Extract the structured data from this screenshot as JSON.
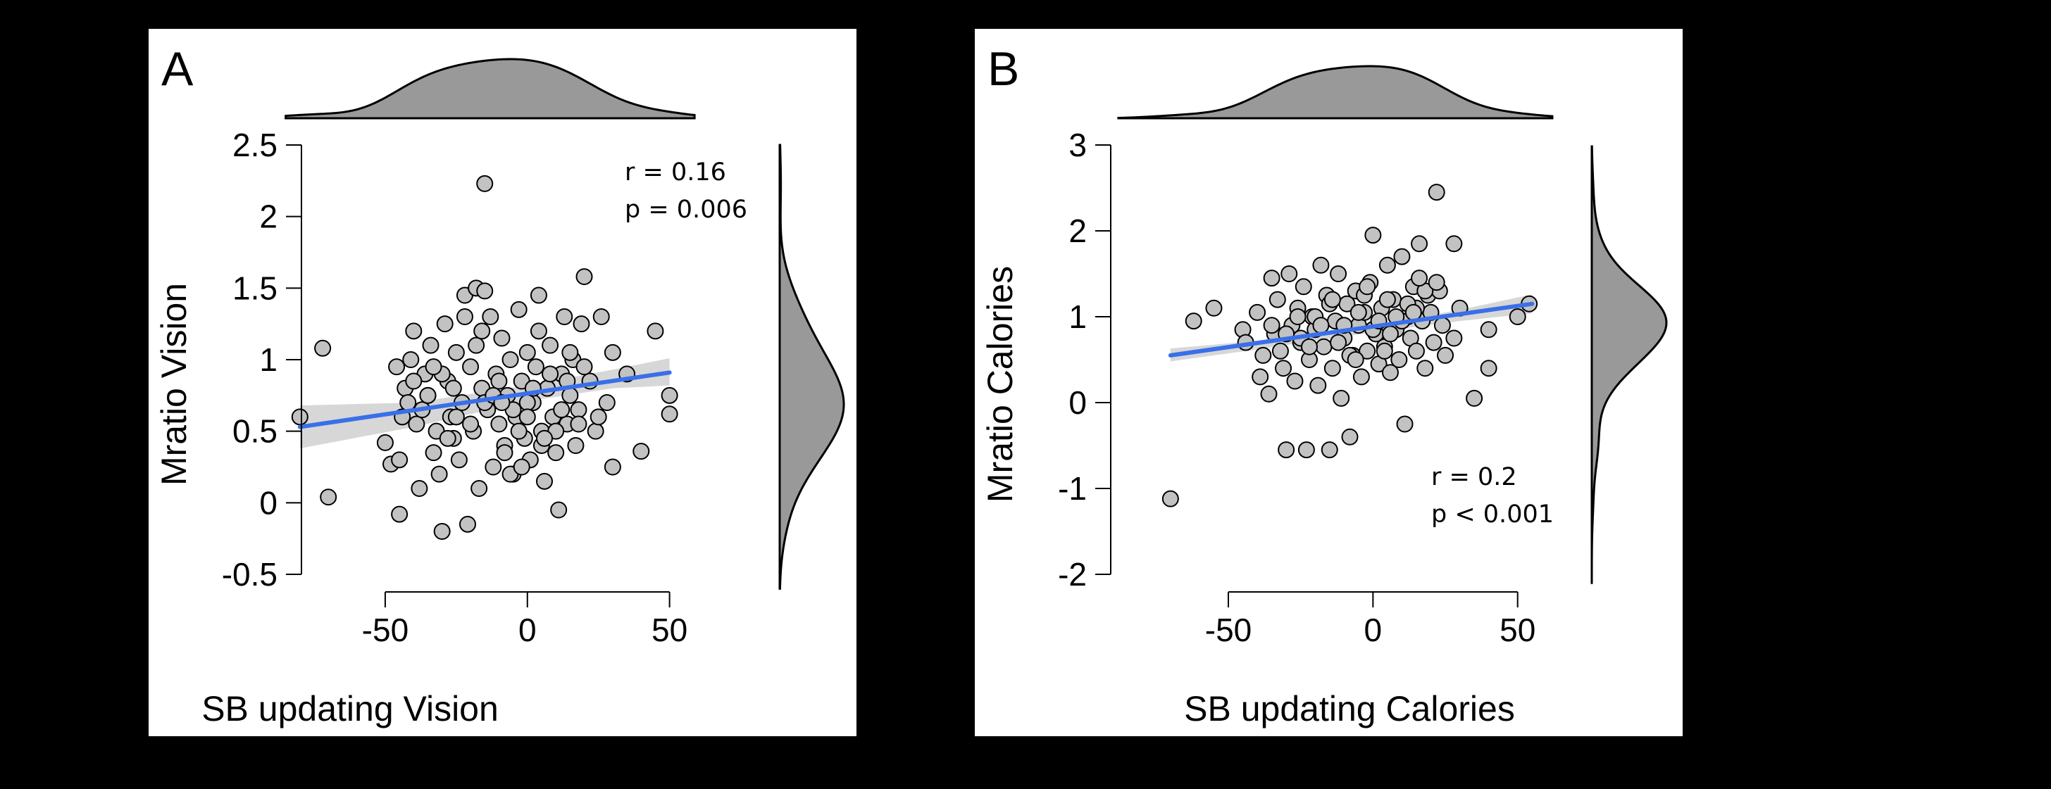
{
  "colors": {
    "point_fill": "#c2c2c2",
    "point_stroke": "#000000",
    "fit_line": "#3a6fe8",
    "ci_band": "#d0d0d0",
    "density_fill": "#999999"
  },
  "chart_data": [
    {
      "type": "scatter",
      "panel_label": "A",
      "xlabel": "SB updating Vision",
      "ylabel": "Mratio Vision",
      "xlim": [
        -75,
        60
      ],
      "ylim": [
        -0.5,
        2.5
      ],
      "xticks": [
        -50,
        0,
        50
      ],
      "xtick_labels": [
        "-50",
        "0",
        "50"
      ],
      "yticks": [
        -0.5,
        0,
        0.5,
        1,
        1.5,
        2,
        2.5
      ],
      "ytick_labels": [
        "-0.5",
        "0",
        "0.5",
        "1",
        "1.5",
        "2",
        "2.5"
      ],
      "stat_r": "r = 0.16",
      "stat_p": "p = 0.006",
      "stat_position": "top-right",
      "fit_line": {
        "x": [
          -80,
          50
        ],
        "y": [
          0.53,
          0.91
        ]
      },
      "ci_band": {
        "x": [
          -80,
          -40,
          0,
          30,
          50
        ],
        "lower": [
          0.38,
          0.53,
          0.71,
          0.8,
          0.82
        ],
        "upper": [
          0.68,
          0.7,
          0.82,
          0.93,
          1.01
        ]
      },
      "points": {
        "x": [
          -80,
          -72,
          -70,
          -50,
          -48,
          -46,
          -45,
          -44,
          -43,
          -42,
          -41,
          -40,
          -39,
          -38,
          -37,
          -36,
          -35,
          -34,
          -33,
          -32,
          -31,
          -30,
          -29,
          -28,
          -27,
          -26,
          -25,
          -24,
          -23,
          -22,
          -21,
          -20,
          -19,
          -18,
          -17,
          -16,
          -15,
          -14,
          -13,
          -12,
          -11,
          -10,
          -9,
          -8,
          -7,
          -6,
          -5,
          -4,
          -3,
          -2,
          -1,
          0,
          1,
          2,
          3,
          4,
          5,
          6,
          7,
          8,
          9,
          10,
          11,
          12,
          13,
          14,
          15,
          16,
          17,
          18,
          19,
          20,
          22,
          24,
          26,
          28,
          30,
          35,
          40,
          45,
          50,
          50,
          -15,
          -45,
          -30,
          -20,
          -10,
          0,
          10,
          -25,
          -35,
          5,
          15,
          25,
          -5,
          -40,
          20,
          30,
          -15,
          -28,
          -8,
          2,
          12,
          -18,
          -3,
          8,
          -22,
          -12,
          18,
          0,
          -6,
          -33,
          -26,
          6,
          14,
          -16,
          -2,
          4,
          -9
        ],
        "y": [
          0.6,
          1.08,
          0.04,
          0.42,
          0.27,
          0.95,
          -0.08,
          0.6,
          0.8,
          0.7,
          1.0,
          1.2,
          0.55,
          0.1,
          0.65,
          0.9,
          0.75,
          1.1,
          0.35,
          0.5,
          0.2,
          -0.2,
          1.25,
          0.85,
          0.6,
          0.45,
          1.05,
          0.3,
          0.7,
          1.45,
          -0.15,
          0.95,
          0.5,
          1.5,
          0.1,
          0.8,
          2.23,
          0.65,
          1.3,
          0.25,
          0.9,
          0.55,
          1.15,
          0.4,
          0.75,
          1.0,
          0.2,
          0.6,
          1.35,
          0.85,
          0.45,
          1.05,
          0.3,
          0.7,
          0.95,
          1.2,
          0.5,
          0.15,
          0.8,
          1.1,
          0.6,
          0.35,
          -0.05,
          0.9,
          1.3,
          0.55,
          0.75,
          1.0,
          0.4,
          0.65,
          1.25,
          1.58,
          0.85,
          0.5,
          1.3,
          0.7,
          0.25,
          0.9,
          0.36,
          1.2,
          0.75,
          0.62,
          1.48,
          0.3,
          0.9,
          0.55,
          0.85,
          0.7,
          0.5,
          0.6,
          0.75,
          0.4,
          1.05,
          0.6,
          0.65,
          0.85,
          0.95,
          1.05,
          0.7,
          0.45,
          0.35,
          0.8,
          0.65,
          1.1,
          0.5,
          0.9,
          1.3,
          0.75,
          0.55,
          0.6,
          0.2,
          0.95,
          0.8,
          0.45,
          0.85,
          1.2,
          0.25,
          1.45,
          0.7
        ]
      }
    },
    {
      "type": "scatter",
      "panel_label": "B",
      "xlabel": "SB updating Calories",
      "ylabel": "Mratio Calories",
      "xlim": [
        -78,
        62
      ],
      "ylim": [
        -2,
        3
      ],
      "xticks": [
        -50,
        0,
        50
      ],
      "xtick_labels": [
        "-50",
        "0",
        "50"
      ],
      "yticks": [
        -2,
        -1,
        0,
        1,
        2,
        3
      ],
      "ytick_labels": [
        "-2",
        "-1",
        "0",
        "1",
        "2",
        "3"
      ],
      "stat_r": "r = 0.2",
      "stat_p": "p < 0.001",
      "stat_position": "bottom-right",
      "fit_line": {
        "x": [
          -70,
          55
        ],
        "y": [
          0.55,
          1.15
        ]
      },
      "ci_band": {
        "x": [
          -70,
          -40,
          0,
          30,
          55
        ],
        "lower": [
          0.48,
          0.62,
          0.82,
          0.95,
          1.04
        ],
        "upper": [
          0.63,
          0.72,
          0.9,
          1.08,
          1.26
        ]
      },
      "points": {
        "x": [
          -70,
          -62,
          -55,
          -45,
          -44,
          -40,
          -39,
          -38,
          -36,
          -35,
          -34,
          -33,
          -32,
          -31,
          -30,
          -29,
          -28,
          -27,
          -26,
          -25,
          -24,
          -23,
          -22,
          -21,
          -20,
          -19,
          -18,
          -17,
          -16,
          -15,
          -14,
          -13,
          -12,
          -11,
          -10,
          -9,
          -8,
          -7,
          -6,
          -5,
          -4,
          -3,
          -2,
          -1,
          0,
          1,
          2,
          3,
          4,
          5,
          6,
          7,
          8,
          9,
          10,
          11,
          12,
          13,
          14,
          15,
          16,
          17,
          18,
          19,
          20,
          21,
          22,
          23,
          24,
          25,
          28,
          30,
          35,
          40,
          40,
          50,
          54,
          -20,
          -25,
          -15,
          -10,
          -5,
          0,
          5,
          10,
          15,
          -30,
          -12,
          8,
          18,
          -8,
          2,
          12,
          -18,
          -3,
          22,
          28,
          -35,
          -22,
          -2,
          6,
          14,
          4,
          -14,
          16,
          -26,
          -6
        ],
        "y": [
          -1.12,
          0.95,
          1.1,
          0.85,
          0.7,
          1.05,
          0.3,
          0.55,
          0.1,
          1.45,
          0.8,
          1.2,
          0.6,
          0.4,
          -0.55,
          1.5,
          0.9,
          0.25,
          1.1,
          0.7,
          1.35,
          -0.55,
          0.5,
          1.0,
          0.85,
          0.2,
          1.6,
          0.65,
          1.25,
          -0.55,
          0.4,
          0.95,
          1.5,
          0.05,
          0.75,
          1.15,
          -0.4,
          0.55,
          1.3,
          0.9,
          0.3,
          1.05,
          0.6,
          1.4,
          1.95,
          0.8,
          0.45,
          1.1,
          0.65,
          1.6,
          0.35,
          1.2,
          0.85,
          0.5,
          1.7,
          -0.25,
          1.0,
          0.75,
          1.35,
          0.6,
          1.85,
          0.95,
          0.4,
          1.25,
          1.05,
          0.7,
          2.45,
          1.3,
          0.9,
          0.55,
          1.85,
          1.1,
          0.05,
          0.85,
          0.4,
          1.0,
          1.15,
          1.0,
          0.75,
          1.15,
          0.9,
          1.05,
          0.85,
          1.2,
          0.95,
          1.1,
          0.8,
          0.7,
          1.0,
          1.3,
          0.55,
          0.95,
          1.15,
          0.9,
          1.25,
          1.4,
          0.75,
          0.9,
          0.65,
          1.35,
          0.8,
          1.05,
          0.6,
          1.2,
          1.45,
          1.0,
          0.5
        ]
      }
    }
  ]
}
